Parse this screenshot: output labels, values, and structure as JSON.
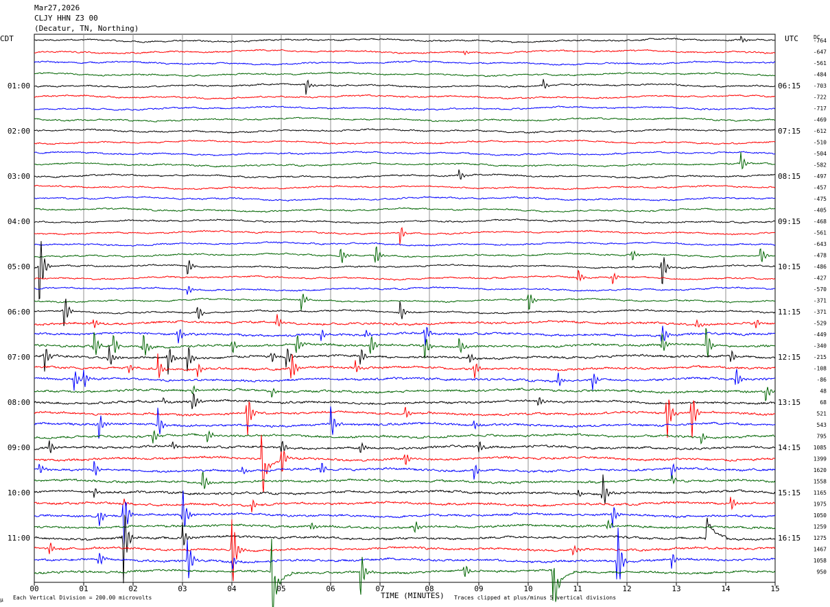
{
  "header": {
    "date": "Mar27,2026",
    "station": "CLJY HHN Z3 00",
    "location": "(Decatur, TN, Northing)"
  },
  "left_axis_label": "CDT",
  "right_axis_label": "UTC",
  "dc_label": "DC",
  "footer": {
    "vertical_division": "Each Vertical Division =  200.00 microvolts",
    "clip_note": "Traces clipped at plus/minus 5 vertical divisions",
    "corner_mark": "µ"
  },
  "colors": [
    "#000000",
    "#ff0000",
    "#0000ff",
    "#006400"
  ],
  "chart_data": {
    "type": "line",
    "xlabel": "TIME (MINUTES)",
    "x_ticks": [
      "00",
      "01",
      "02",
      "03",
      "04",
      "05",
      "06",
      "07",
      "08",
      "09",
      "10",
      "11",
      "12",
      "13",
      "14",
      "15"
    ],
    "xlim": [
      0,
      15
    ],
    "grid": "vertical",
    "left_ticks": [
      {
        "row": 4,
        "label": "01:00"
      },
      {
        "row": 8,
        "label": "02:00"
      },
      {
        "row": 12,
        "label": "03:00"
      },
      {
        "row": 16,
        "label": "04:00"
      },
      {
        "row": 20,
        "label": "05:00"
      },
      {
        "row": 24,
        "label": "06:00"
      },
      {
        "row": 28,
        "label": "07:00"
      },
      {
        "row": 32,
        "label": "08:00"
      },
      {
        "row": 36,
        "label": "09:00"
      },
      {
        "row": 40,
        "label": "10:00"
      },
      {
        "row": 44,
        "label": "11:00"
      }
    ],
    "right_ticks": [
      {
        "row": 4,
        "label": "06:15"
      },
      {
        "row": 8,
        "label": "07:15"
      },
      {
        "row": 12,
        "label": "08:15"
      },
      {
        "row": 16,
        "label": "09:15"
      },
      {
        "row": 20,
        "label": "10:15"
      },
      {
        "row": 24,
        "label": "11:15"
      },
      {
        "row": 28,
        "label": "12:15"
      },
      {
        "row": 32,
        "label": "13:15"
      },
      {
        "row": 36,
        "label": "14:15"
      },
      {
        "row": 40,
        "label": "15:15"
      },
      {
        "row": 44,
        "label": "16:15"
      }
    ],
    "dc_offsets": [
      "-764",
      "-647",
      "-561",
      "-484",
      "-703",
      "-722",
      "-717",
      "-469",
      "-612",
      "-510",
      "-504",
      "-582",
      "-497",
      "-457",
      "-475",
      "-405",
      "-468",
      "-561",
      "-643",
      "-478",
      "-486",
      "-427",
      "-570",
      "-371",
      "-371",
      "-529",
      "-449",
      "-340",
      "-215",
      "-108",
      "-86",
      "48",
      "68",
      "521",
      "543",
      "795",
      "1085",
      "1399",
      "1620",
      "1558",
      "1165",
      "1975",
      "1050",
      "1259",
      "1275",
      "1467",
      "1058",
      "950"
    ],
    "events": [
      [
        [
          14.3,
          0.5,
          0
        ]
      ],
      [
        [
          8.7,
          0.25,
          0
        ]
      ],
      [],
      [],
      [
        [
          5.5,
          1,
          0
        ],
        [
          10.3,
          0.7,
          0
        ]
      ],
      [],
      [],
      [],
      [],
      [],
      [],
      [
        [
          14.3,
          1.2,
          0
        ]
      ],
      [
        [
          8.6,
          0.8,
          0
        ]
      ],
      [],
      [],
      [],
      [],
      [
        [
          7.4,
          1.2,
          0
        ]
      ],
      [],
      [
        [
          6.2,
          1.2,
          0
        ],
        [
          6.9,
          1.5,
          0
        ],
        [
          12.1,
          0.8,
          0
        ],
        [
          14.7,
          1.2,
          0
        ]
      ],
      [
        [
          0.1,
          5,
          0
        ],
        [
          3.1,
          1.2,
          0
        ],
        [
          12.7,
          2.5,
          0
        ]
      ],
      [
        [
          11.0,
          1,
          0
        ],
        [
          11.7,
          0.8,
          0
        ]
      ],
      [
        [
          3.1,
          0.6,
          0
        ]
      ],
      [
        [
          5.4,
          1.2,
          0
        ],
        [
          10.0,
          1.5,
          0
        ]
      ],
      [
        [
          0.6,
          2.3,
          0
        ],
        [
          3.3,
          1.1,
          0
        ],
        [
          7.4,
          1.3,
          0
        ]
      ],
      [
        [
          1.2,
          0.6,
          0
        ],
        [
          4.9,
          1,
          0
        ],
        [
          13.4,
          0.6,
          0
        ],
        [
          14.6,
          0.6,
          0
        ]
      ],
      [
        [
          2.9,
          1.2,
          0
        ],
        [
          5.8,
          0.8,
          0
        ],
        [
          6.7,
          0.6,
          0
        ],
        [
          7.9,
          1.6,
          0
        ],
        [
          12.7,
          1.5,
          0
        ]
      ],
      [
        [
          1.2,
          2,
          0
        ],
        [
          1.6,
          1.5,
          0
        ],
        [
          2.2,
          1.8,
          0
        ],
        [
          4.0,
          1,
          0
        ],
        [
          5.3,
          1.5,
          0
        ],
        [
          6.8,
          1.5,
          0
        ],
        [
          7.9,
          1.5,
          0
        ],
        [
          8.6,
          1.2,
          0
        ],
        [
          12.7,
          1.5,
          0
        ],
        [
          13.6,
          2.5,
          0
        ]
      ],
      [
        [
          0.2,
          1.8,
          0
        ],
        [
          1.5,
          1.5,
          0
        ],
        [
          2.7,
          2,
          0
        ],
        [
          3.1,
          1.8,
          0
        ],
        [
          4.8,
          0.8,
          0
        ],
        [
          5.1,
          1.5,
          0
        ],
        [
          6.6,
          1.2,
          0
        ],
        [
          8.8,
          0.8,
          0
        ],
        [
          14.1,
          0.8,
          0
        ]
      ],
      [
        [
          1.9,
          0.7,
          0
        ],
        [
          2.5,
          1.5,
          0
        ],
        [
          3.3,
          0.8,
          0
        ],
        [
          5.2,
          2,
          0
        ],
        [
          6.5,
          0.7,
          0
        ],
        [
          8.9,
          1.2,
          0
        ]
      ],
      [
        [
          0.8,
          1.5,
          0
        ],
        [
          1.0,
          1.2,
          0
        ],
        [
          10.6,
          1,
          0
        ],
        [
          11.3,
          1.2,
          0
        ],
        [
          14.2,
          1.5,
          0
        ]
      ],
      [
        [
          3.2,
          0.6,
          0
        ],
        [
          4.8,
          0.7,
          0
        ],
        [
          14.8,
          1.2,
          0
        ]
      ],
      [
        [
          2.6,
          0.5,
          0
        ],
        [
          3.2,
          1.5,
          0
        ],
        [
          10.2,
          0.6,
          0
        ]
      ],
      [
        [
          4.3,
          3,
          0
        ],
        [
          7.5,
          0.8,
          0
        ],
        [
          12.8,
          3.5,
          0
        ],
        [
          13.3,
          3.5,
          0
        ]
      ],
      [
        [
          1.3,
          1.8,
          0
        ],
        [
          2.5,
          1.8,
          0
        ],
        [
          6.0,
          2,
          0
        ],
        [
          8.9,
          0.6,
          0
        ]
      ],
      [
        [
          2.4,
          1,
          0
        ],
        [
          3.5,
          0.8,
          0
        ],
        [
          13.5,
          0.7,
          0
        ]
      ],
      [
        [
          0.3,
          1,
          0
        ],
        [
          2.8,
          0.5,
          0
        ],
        [
          5.0,
          1,
          0
        ],
        [
          6.6,
          0.8,
          0
        ],
        [
          9.0,
          0.8,
          0
        ]
      ],
      [
        [
          4.6,
          3.5,
          -3
        ],
        [
          5.0,
          2,
          0
        ],
        [
          7.5,
          1,
          0
        ]
      ],
      [
        [
          0.1,
          0.7,
          0
        ],
        [
          1.2,
          1.2,
          0
        ],
        [
          4.2,
          0.6,
          0
        ],
        [
          5.8,
          1,
          0
        ],
        [
          8.9,
          1,
          0
        ],
        [
          12.9,
          1,
          0
        ]
      ],
      [
        [
          3.4,
          1.5,
          0
        ],
        [
          12.9,
          0.7,
          0
        ]
      ],
      [
        [
          1.2,
          0.7,
          0
        ],
        [
          11.5,
          2.5,
          0
        ],
        [
          11.0,
          0.6,
          0
        ]
      ],
      [
        [
          1.8,
          0.6,
          0
        ],
        [
          4.4,
          0.8,
          0
        ],
        [
          14.1,
          1,
          0
        ]
      ],
      [
        [
          1.3,
          1.2,
          0
        ],
        [
          1.8,
          4,
          0
        ],
        [
          3.0,
          3,
          0
        ],
        [
          11.7,
          1.5,
          0
        ]
      ],
      [
        [
          5.6,
          0.6,
          0
        ],
        [
          7.7,
          0.8,
          0
        ],
        [
          11.6,
          0.8,
          0
        ]
      ],
      [
        [
          1.8,
          5,
          0
        ],
        [
          3.0,
          1.5,
          0
        ],
        [
          13.6,
          0.8,
          3
        ]
      ],
      [
        [
          0.3,
          0.8,
          0
        ],
        [
          4.0,
          5,
          0
        ],
        [
          10.9,
          0.7,
          0
        ]
      ],
      [
        [
          1.3,
          1,
          0
        ],
        [
          3.1,
          3,
          0
        ],
        [
          4.0,
          1,
          0
        ],
        [
          11.8,
          5,
          0
        ],
        [
          12.9,
          1,
          0
        ]
      ],
      [
        [
          4.8,
          5,
          -4
        ],
        [
          6.6,
          3,
          0
        ],
        [
          10.5,
          4,
          -4
        ],
        [
          8.7,
          1,
          0
        ]
      ]
    ]
  }
}
